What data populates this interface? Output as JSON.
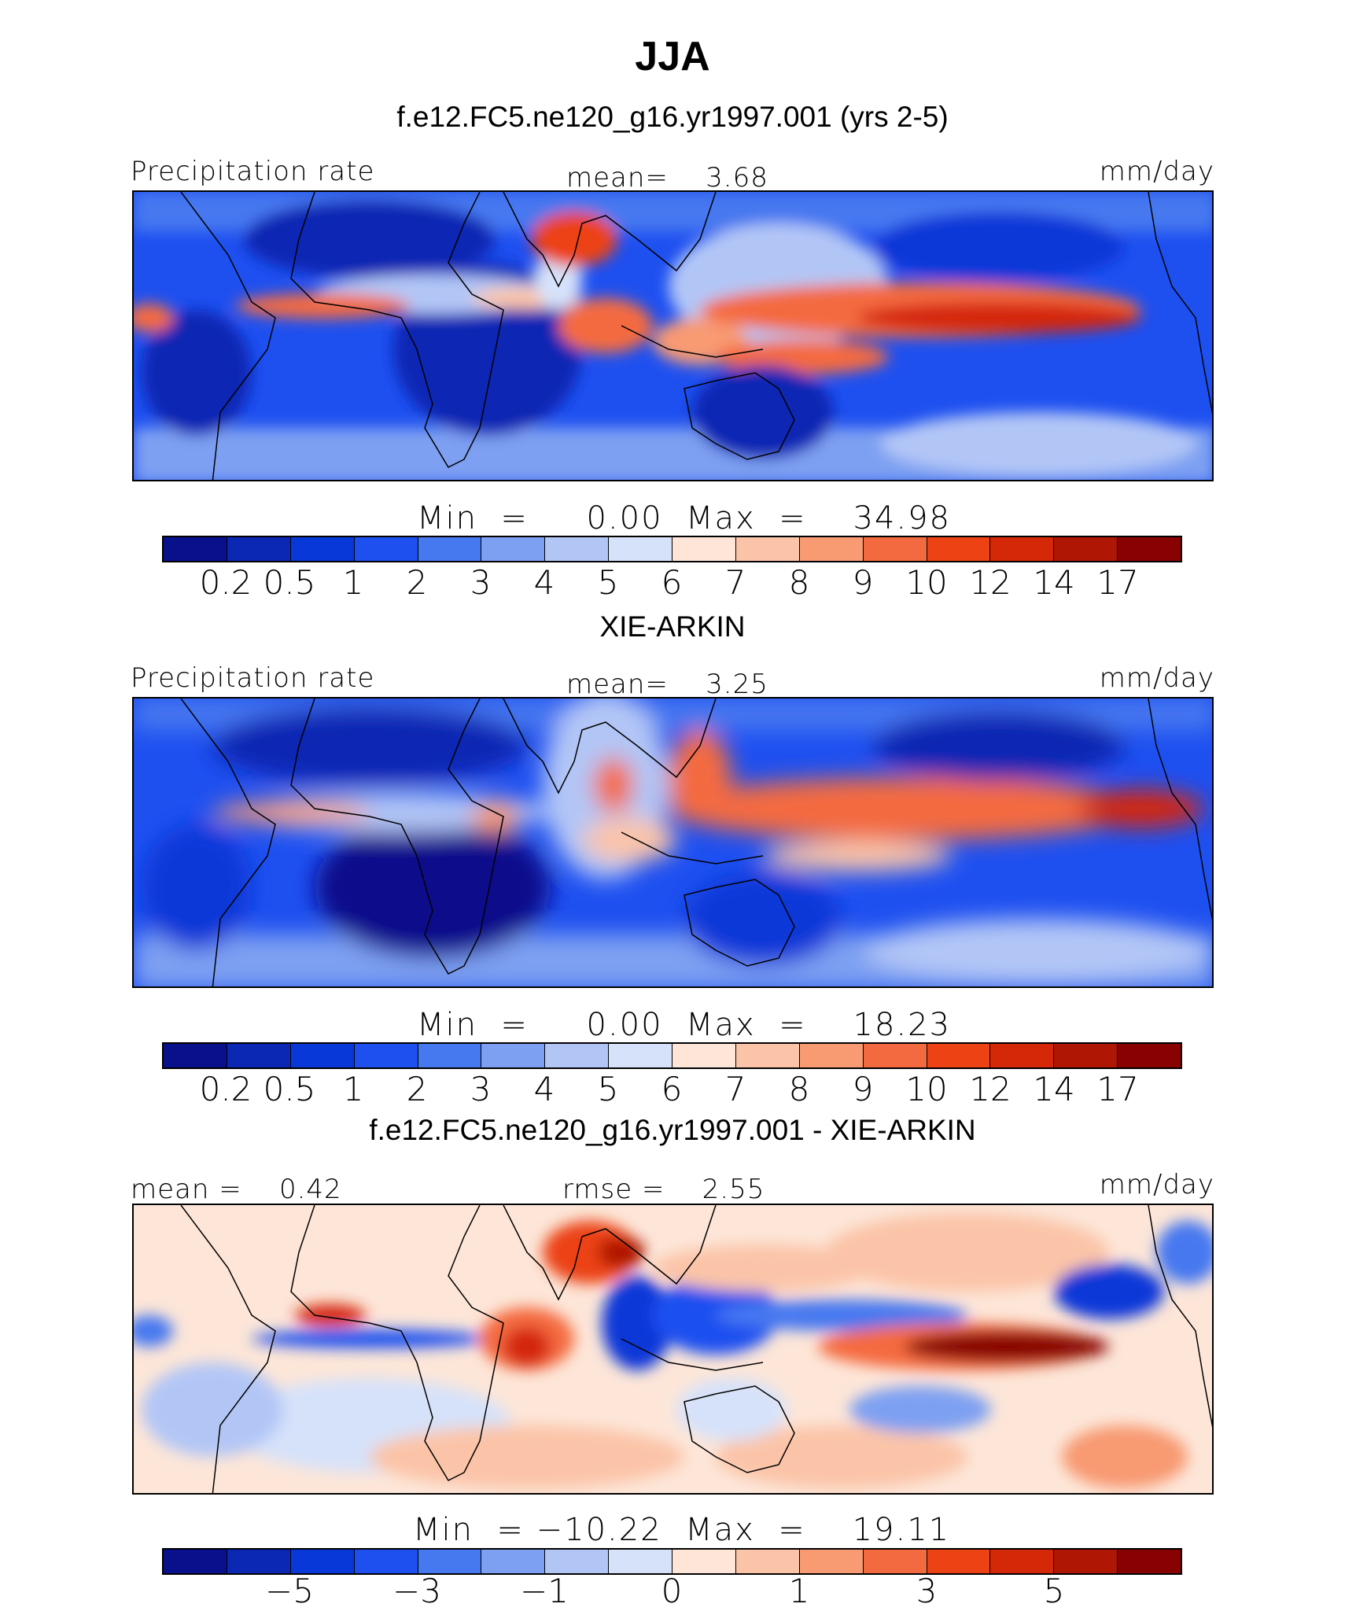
{
  "title": "JJA",
  "panels": [
    {
      "title": "f.e12.FC5.ne120_g16.yr1997.001 (yrs 2-5)",
      "left_label": "Precipitation rate",
      "center_label": "mean=    3.68",
      "right_label": "mm/day",
      "minmax": "Min  =     0.00  Max  =    34.98",
      "colorbar_ticks": [
        "0.2",
        "0.5",
        "1",
        "2",
        "3",
        "4",
        "5",
        "6",
        "7",
        "8",
        "9",
        "10",
        "12",
        "14",
        "17"
      ]
    },
    {
      "title": "XIE-ARKIN",
      "left_label": "Precipitation rate",
      "center_label": "mean=    3.25",
      "right_label": "mm/day",
      "minmax": "Min  =     0.00  Max  =    18.23",
      "colorbar_ticks": [
        "0.2",
        "0.5",
        "1",
        "2",
        "3",
        "4",
        "5",
        "6",
        "7",
        "8",
        "9",
        "10",
        "12",
        "14",
        "17"
      ]
    },
    {
      "title": "f.e12.FC5.ne120_g16.yr1997.001 - XIE-ARKIN",
      "left_label": "mean =    0.42",
      "center_label": "rmse =    2.55",
      "right_label": "mm/day",
      "minmax": "Min  = −10.22  Max  =    19.11",
      "colorbar_ticks": [
        "−5",
        "−3",
        "−1",
        "0",
        "1",
        "3",
        "5"
      ]
    }
  ],
  "colors": {
    "precip_scale": [
      "#08108c",
      "#0a28b4",
      "#0838d8",
      "#1e50f0",
      "#4678f0",
      "#7ea0f2",
      "#b2c6f6",
      "#d6e2fa",
      "#fde6d8",
      "#fbc4a8",
      "#f89a72",
      "#f46a40",
      "#ec4214",
      "#d42808",
      "#b01604",
      "#880202"
    ],
    "diff_scale": [
      "#08108c",
      "#0a28b4",
      "#0838d8",
      "#1e50f0",
      "#4678f0",
      "#7ea0f2",
      "#b2c6f6",
      "#d6e2fa",
      "#fde6d8",
      "#fbc4a8",
      "#f89a72",
      "#f46a40",
      "#ec4214",
      "#d42808",
      "#b01604",
      "#880202"
    ]
  }
}
